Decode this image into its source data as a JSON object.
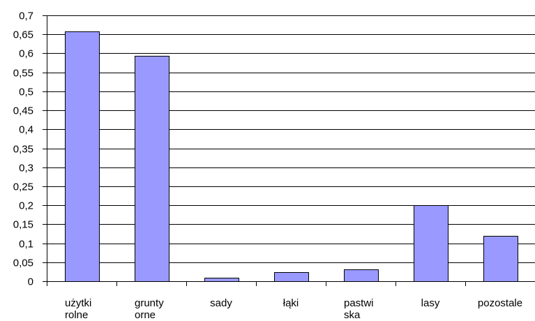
{
  "chart_data": {
    "type": "bar",
    "categories": [
      [
        "użytki",
        "rolne"
      ],
      [
        "grunty",
        "orne"
      ],
      [
        "sady"
      ],
      [
        "łąki"
      ],
      [
        "pastwi",
        "ska"
      ],
      [
        "lasy"
      ],
      [
        "pozostale"
      ]
    ],
    "values": [
      0.658,
      0.593,
      0.01,
      0.023,
      0.032,
      0.2,
      0.12
    ],
    "ylim": [
      0,
      0.7
    ],
    "yticks": [
      0,
      0.05,
      0.1,
      0.15,
      0.2,
      0.25,
      0.3,
      0.35,
      0.4,
      0.45,
      0.5,
      0.55,
      0.6,
      0.65,
      0.7
    ],
    "ytick_labels": [
      "0",
      "0,05",
      "0,1",
      "0,15",
      "0,2",
      "0,25",
      "0,3",
      "0,35",
      "0,4",
      "0,45",
      "0,5",
      "0,55",
      "0,6",
      "0,65",
      "0,7"
    ],
    "grid": true,
    "legend": false,
    "bar_color": "#9999ff",
    "title": "",
    "xlabel": "",
    "ylabel": ""
  }
}
